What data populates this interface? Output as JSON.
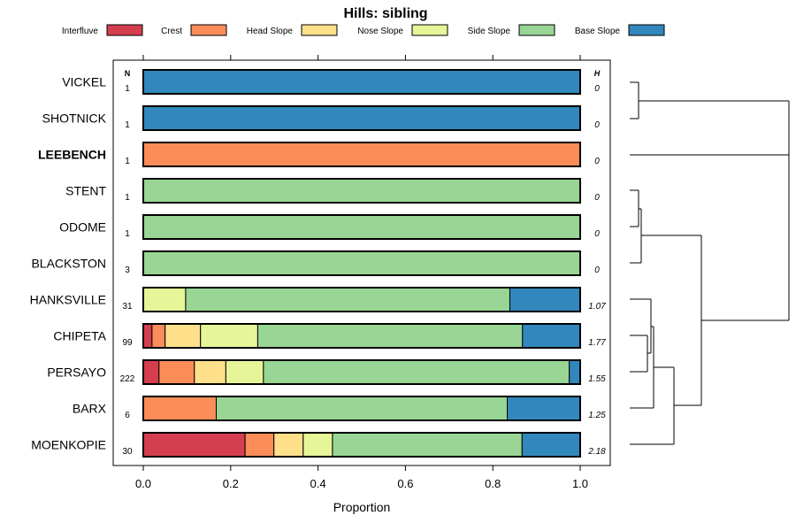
{
  "chart_data": {
    "type": "bar",
    "stacked": true,
    "orientation": "horizontal",
    "title": "Hills: sibling",
    "xlabel": "Proportion",
    "ylabel": "",
    "xlim": [
      0,
      1
    ],
    "x_ticks": [
      "0.0",
      "0.2",
      "0.4",
      "0.6",
      "0.8",
      "1.0"
    ],
    "n_header": "N",
    "h_header": "H",
    "legend": [
      {
        "name": "Interfluve",
        "color": "#D53E4F"
      },
      {
        "name": "Crest",
        "color": "#FC8D59"
      },
      {
        "name": "Head Slope",
        "color": "#FEE08B"
      },
      {
        "name": "Nose Slope",
        "color": "#E6F598"
      },
      {
        "name": "Side Slope",
        "color": "#99D594"
      },
      {
        "name": "Base Slope",
        "color": "#3288BD"
      }
    ],
    "rows": [
      {
        "name": "VICKEL",
        "n": "1",
        "h": "0",
        "bold": false,
        "values": [
          0,
          0,
          0,
          0,
          0,
          1.0
        ]
      },
      {
        "name": "SHOTNICK",
        "n": "1",
        "h": "0",
        "bold": false,
        "values": [
          0,
          0,
          0,
          0,
          0,
          1.0
        ]
      },
      {
        "name": "LEEBENCH",
        "n": "1",
        "h": "0",
        "bold": true,
        "values": [
          0,
          1.0,
          0,
          0,
          0,
          0
        ]
      },
      {
        "name": "STENT",
        "n": "1",
        "h": "0",
        "bold": false,
        "values": [
          0,
          0,
          0,
          0,
          1.0,
          0
        ]
      },
      {
        "name": "ODOME",
        "n": "1",
        "h": "0",
        "bold": false,
        "values": [
          0,
          0,
          0,
          0,
          1.0,
          0
        ]
      },
      {
        "name": "BLACKSTON",
        "n": "3",
        "h": "0",
        "bold": false,
        "values": [
          0,
          0,
          0,
          0,
          1.0,
          0
        ]
      },
      {
        "name": "HANKSVILLE",
        "n": "31",
        "h": "1.07",
        "bold": false,
        "values": [
          0,
          0,
          0,
          0.097,
          0.742,
          0.161
        ]
      },
      {
        "name": "CHIPETA",
        "n": "99",
        "h": "1.77",
        "bold": false,
        "values": [
          0.02,
          0.03,
          0.081,
          0.131,
          0.606,
          0.132
        ]
      },
      {
        "name": "PERSAYO",
        "n": "222",
        "h": "1.55",
        "bold": false,
        "values": [
          0.036,
          0.081,
          0.072,
          0.086,
          0.7,
          0.025
        ]
      },
      {
        "name": "BARX",
        "n": "6",
        "h": "1.25",
        "bold": false,
        "values": [
          0,
          0.167,
          0,
          0,
          0.666,
          0.167
        ]
      },
      {
        "name": "MOENKOPIE",
        "n": "30",
        "h": "2.18",
        "bold": false,
        "values": [
          0.233,
          0.066,
          0.067,
          0.067,
          0.434,
          0.133
        ]
      }
    ],
    "dendrogram": {
      "description_order": [
        "VICKEL",
        "SHOTNICK",
        "LEEBENCH",
        "STENT",
        "ODOME",
        "BLACKSTON",
        "HANKSVILLE",
        "CHIPETA",
        "PERSAYO",
        "BARX",
        "MOENKOPIE"
      ],
      "merges": [
        {
          "a": "VICKEL",
          "b": "SHOTNICK",
          "height": 0.02
        },
        {
          "a": "STENT",
          "b": "ODOME",
          "height": 0.02
        },
        {
          "a": "STENT+ODOME",
          "b": "BLACKSTON",
          "height": 0.03
        },
        {
          "a": "CHIPETA",
          "b": "PERSAYO",
          "height": 0.05
        },
        {
          "a": "HANKSVILLE",
          "b": "CHIPETA+PERSAYO",
          "height": 0.06
        },
        {
          "a": "BARX",
          "b": "HANK+CHIP+PERS",
          "height": 0.1
        },
        {
          "a": "MOENKOPIE",
          "b": "BARX+HANK+CHIP+PERS",
          "height": 0.18
        },
        {
          "a": "STENT+ODOME+BLACKSTON",
          "b": "MOENKOPIE-group",
          "height": 0.25
        },
        {
          "a": "LEEBENCH",
          "b": "sibling-group",
          "height": 0.45
        },
        {
          "a": "VICKEL+SHOTNICK",
          "b": "rest",
          "height": 0.52
        }
      ]
    }
  }
}
